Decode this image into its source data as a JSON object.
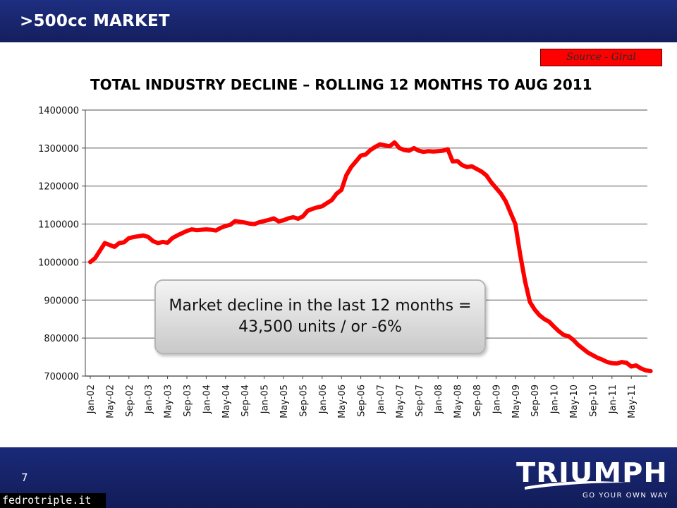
{
  "header": {
    "title": ">500cc MARKET"
  },
  "source_label": "Source - Giral",
  "callout": {
    "text": "Market decline in the last 12 months = 43,500 units / or -6%"
  },
  "footer": {
    "page_number": "7",
    "logo_text": "TRIUMPH",
    "logo_tagline": "GO YOUR OWN WAY",
    "watermark": "fedrotriple.it"
  },
  "colors": {
    "header_bg": "#1e2e80",
    "series_line": "#ff0000",
    "source_box": "#ff0000",
    "footer_bg": "#1a2a78"
  },
  "chart_data": {
    "type": "line",
    "title": "TOTAL INDUSTRY DECLINE – ROLLING 12 MONTHS TO AUG 2011",
    "xlabel": "",
    "ylabel": "",
    "ylim": [
      700000,
      1400000
    ],
    "y_ticks": [
      700000,
      800000,
      900000,
      1000000,
      1100000,
      1200000,
      1300000,
      1400000
    ],
    "y_tick_labels": [
      "700000",
      "800000",
      "900000",
      "1000000",
      "1100000",
      "1200000",
      "1300000",
      "1400000"
    ],
    "x_tick_labels": [
      "Jan-02",
      "May-02",
      "Sep-02",
      "Jan-03",
      "May-03",
      "Sep-03",
      "Jan-04",
      "May-04",
      "Sep-04",
      "Jan-05",
      "May-05",
      "Sep-05",
      "Jan-06",
      "May-06",
      "Sep-06",
      "Jan-07",
      "May-07",
      "Sep-07",
      "Jan-08",
      "May-08",
      "Sep-08",
      "Jan-09",
      "May-09",
      "Sep-09",
      "Jan-10",
      "May-10",
      "Sep-10",
      "Jan-11",
      "May-11"
    ],
    "grid": true,
    "legend": "none",
    "series": [
      {
        "x_start": "Jan-02",
        "x_end": "Aug-11",
        "values": [
          1000000,
          1010000,
          1030000,
          1050000,
          1045000,
          1040000,
          1050000,
          1052000,
          1063000,
          1066000,
          1068000,
          1070000,
          1066000,
          1055000,
          1050000,
          1053000,
          1051000,
          1063000,
          1070000,
          1076000,
          1082000,
          1086000,
          1084000,
          1085000,
          1086000,
          1085000,
          1083000,
          1090000,
          1095000,
          1098000,
          1108000,
          1106000,
          1104000,
          1101000,
          1100000,
          1105000,
          1108000,
          1111000,
          1115000,
          1107000,
          1110000,
          1115000,
          1118000,
          1114000,
          1120000,
          1135000,
          1140000,
          1144000,
          1147000,
          1155000,
          1163000,
          1180000,
          1190000,
          1228000,
          1250000,
          1265000,
          1280000,
          1283000,
          1295000,
          1303000,
          1310000,
          1307000,
          1305000,
          1315000,
          1300000,
          1295000,
          1293000,
          1300000,
          1293000,
          1290000,
          1292000,
          1291000,
          1292000,
          1293000,
          1297000,
          1265000,
          1266000,
          1255000,
          1250000,
          1252000,
          1245000,
          1238000,
          1228000,
          1210000,
          1195000,
          1180000,
          1160000,
          1130000,
          1100000,
          1020000,
          950000,
          895000,
          875000,
          860000,
          850000,
          843000,
          830000,
          818000,
          808000,
          805000,
          795000,
          782000,
          772000,
          762000,
          755000,
          748000,
          743000,
          737000,
          734000,
          733000,
          737000,
          735000,
          725000,
          728000,
          720000,
          715000,
          713000
        ]
      }
    ]
  }
}
